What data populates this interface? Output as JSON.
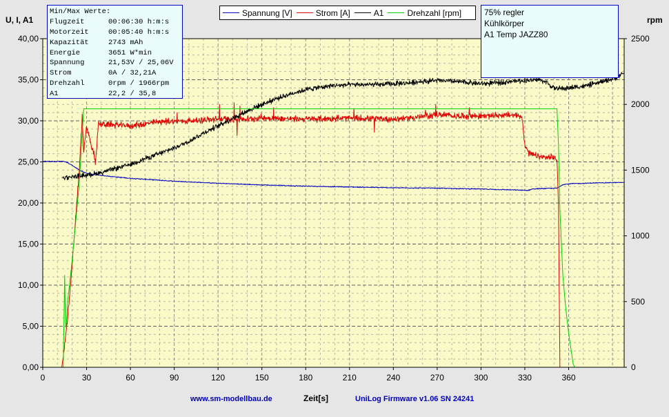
{
  "chart_data": {
    "type": "line",
    "xlabel": "Zeit[s]",
    "ylabel_left": "U, I, A1",
    "ylabel_right": "rpm",
    "xlim": [
      0,
      398
    ],
    "ylim": [
      0,
      40
    ],
    "ylim_right": [
      0,
      2500
    ],
    "x_ticks": [
      "0",
      "30",
      "60",
      "90",
      "120",
      "150",
      "180",
      "210",
      "240",
      "270",
      "300",
      "330",
      "360"
    ],
    "x_tick_values": [
      0,
      30,
      60,
      90,
      120,
      150,
      180,
      210,
      240,
      270,
      300,
      330,
      360
    ],
    "y_ticks": [
      "0,00",
      "5,00",
      "10,00",
      "15,00",
      "20,00",
      "25,00",
      "30,00",
      "35,00",
      "40,00"
    ],
    "y_tick_values": [
      0,
      5,
      10,
      15,
      20,
      25,
      30,
      35,
      40
    ],
    "y2_ticks": [
      "0",
      "500",
      "1000",
      "1500",
      "2000",
      "2500"
    ],
    "y2_tick_values": [
      0,
      500,
      1000,
      1500,
      2000,
      2500
    ],
    "series": [
      {
        "name": "Spannung [V]",
        "color": "#0000c0",
        "axis": "left",
        "noise": 0.05,
        "x": [
          0,
          14,
          17,
          20,
          25,
          30,
          40,
          60,
          90,
          120,
          150,
          180,
          210,
          240,
          270,
          300,
          320,
          332,
          335,
          340,
          352,
          356,
          362,
          380,
          398
        ],
        "y": [
          25.06,
          25.06,
          24.9,
          24.6,
          24.0,
          23.6,
          23.35,
          23.0,
          22.65,
          22.4,
          22.2,
          22.05,
          21.95,
          21.85,
          21.8,
          21.7,
          21.6,
          21.53,
          21.7,
          21.75,
          21.8,
          22.25,
          22.35,
          22.45,
          22.5
        ]
      },
      {
        "name": "Strom [A]",
        "color": "#e00000",
        "axis": "left",
        "noise": 0.35,
        "x": [
          13,
          14,
          17,
          20,
          22,
          25,
          27,
          28,
          29,
          30,
          31,
          32,
          33,
          34,
          35,
          36,
          37,
          38,
          40,
          50,
          60,
          70,
          80,
          100,
          120,
          140,
          150,
          160,
          180,
          200,
          220,
          240,
          260,
          270,
          280,
          300,
          320,
          326,
          328,
          329,
          330,
          333,
          340,
          350,
          351,
          352,
          353,
          354
        ],
        "y": [
          0,
          1.2,
          6,
          12,
          17,
          24,
          30.5,
          26,
          28,
          29,
          28.5,
          28,
          27,
          26.5,
          26,
          25,
          27,
          29.5,
          29.6,
          29.5,
          29.4,
          29.6,
          29.9,
          30.0,
          30.2,
          30.2,
          30.4,
          30.3,
          30.2,
          30.3,
          30.3,
          30.2,
          30.5,
          30.8,
          30.6,
          30.6,
          30.7,
          30.6,
          30.5,
          29,
          27,
          26,
          25.6,
          25.5,
          25.4,
          25.3,
          20,
          0
        ],
        "spikes": [
          {
            "x": 92,
            "y": 31.0
          },
          {
            "x": 121,
            "y": 32.0
          },
          {
            "x": 131,
            "y": 32.21
          },
          {
            "x": 133,
            "y": 28.2
          },
          {
            "x": 135,
            "y": 31.8
          },
          {
            "x": 158,
            "y": 31.6
          },
          {
            "x": 213,
            "y": 31.5
          },
          {
            "x": 227,
            "y": 28.6
          },
          {
            "x": 262,
            "y": 31.3
          },
          {
            "x": 269,
            "y": 32.0
          },
          {
            "x": 292,
            "y": 31.6
          }
        ]
      },
      {
        "name": "A1",
        "color": "#000000",
        "axis": "left",
        "noise": 0.28,
        "x": [
          13,
          20,
          30,
          40,
          50,
          60,
          70,
          80,
          90,
          100,
          110,
          120,
          130,
          140,
          150,
          160,
          170,
          180,
          190,
          200,
          210,
          220,
          230,
          240,
          250,
          260,
          270,
          280,
          290,
          300,
          310,
          320,
          330,
          340,
          345,
          348,
          350,
          355,
          360,
          370,
          380,
          390,
          398
        ],
        "y": [
          23.1,
          23.2,
          23.4,
          23.7,
          24.2,
          24.7,
          25.4,
          26.0,
          26.7,
          27.5,
          28.5,
          29.4,
          30.3,
          31.2,
          32.0,
          32.7,
          33.3,
          33.8,
          34.1,
          34.3,
          34.4,
          34.4,
          34.4,
          34.5,
          34.6,
          34.8,
          34.9,
          34.8,
          34.7,
          34.5,
          34.6,
          34.8,
          34.9,
          35.0,
          34.7,
          34.2,
          34.0,
          33.9,
          34.0,
          34.2,
          34.6,
          35.1,
          35.8
        ]
      },
      {
        "name": "Drehzahl [rpm]",
        "color": "#00d000",
        "axis": "right",
        "noise": 0,
        "x": [
          13,
          14,
          15,
          15.5,
          16,
          17,
          20,
          25,
          28,
          29,
          35,
          60,
          90,
          120,
          150,
          180,
          210,
          240,
          270,
          300,
          330,
          347,
          348,
          349,
          350,
          352,
          353,
          354,
          356,
          358,
          360,
          363,
          364,
          365
        ],
        "y": [
          0,
          0,
          700,
          350,
          300,
          500,
          800,
          1400,
          1966,
          1966,
          1966,
          1966,
          1966,
          1966,
          1966,
          1966,
          1966,
          1966,
          1966,
          1966,
          1966,
          1966,
          1966,
          1966,
          1966,
          1966,
          1700,
          1200,
          700,
          450,
          260,
          30,
          0,
          0
        ]
      }
    ]
  },
  "legend": {
    "items": [
      {
        "label": "Spannung [V]",
        "color": "#0000c0"
      },
      {
        "label": "Strom [A]",
        "color": "#e00000"
      },
      {
        "label": "A1",
        "color": "#000000"
      },
      {
        "label": "Drehzahl [rpm]",
        "color": "#00d000"
      }
    ]
  },
  "stats": {
    "title": "Min/Max Werte:",
    "rows": [
      {
        "label": "Flugzeit",
        "value": "00:06:30 h:m:s"
      },
      {
        "label": "Motorzeit",
        "value": "00:05:40 h:m:s"
      },
      {
        "label": "Kapazität",
        "value": "2743 mAh"
      },
      {
        "label": "Energie",
        "value": "3651 W*min"
      },
      {
        "label": "Spannung",
        "value": "21,53V / 25,06V"
      },
      {
        "label": "Strom",
        "value": "0A / 32,21A"
      },
      {
        "label": "Drehzahl",
        "value": "0rpm / 1966rpm"
      },
      {
        "label": "A1",
        "value": "22,2 / 35,8"
      }
    ]
  },
  "note": {
    "lines": [
      "75% regler",
      "Kühlkörper",
      "A1 Temp JAZZ80"
    ]
  },
  "footer": {
    "website": "www.sm-modellbau.de",
    "firmware": "UniLog Firmware v1.06 SN 24241"
  },
  "colors": {
    "plot_bg": "#fafac8",
    "page_bg": "#e6e6e6",
    "grid": "#808080"
  }
}
